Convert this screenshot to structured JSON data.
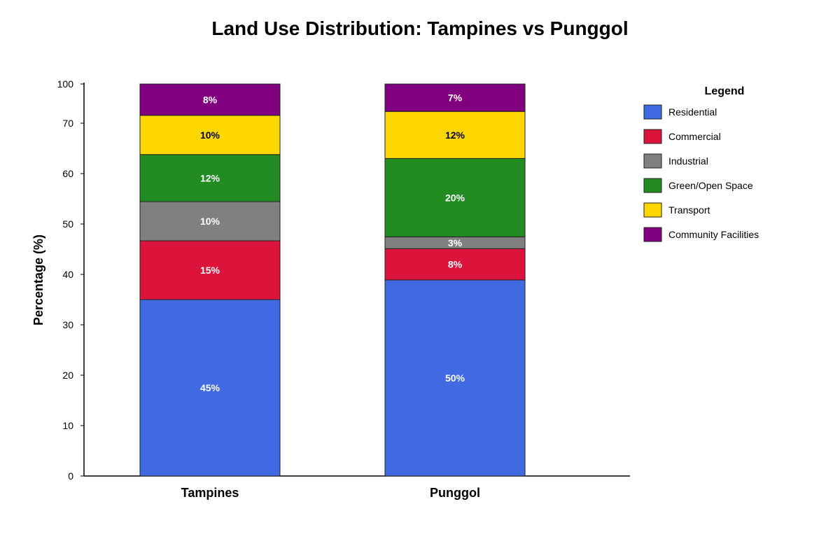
{
  "chart_data": {
    "type": "bar",
    "stacked": true,
    "title": "Land Use Distribution: Tampines vs Punggol",
    "xlabel": "",
    "ylabel": "Percentage (%)",
    "yticks": [
      0,
      10,
      20,
      30,
      40,
      50,
      60,
      70,
      100
    ],
    "categories": [
      "Tampines",
      "Punggol"
    ],
    "series": [
      {
        "name": "Residential",
        "color": "#4169E1",
        "label_color": "#ffffff",
        "values": [
          45,
          50
        ],
        "labels": [
          "45%",
          "50%"
        ]
      },
      {
        "name": "Commercial",
        "color": "#DC143C",
        "label_color": "#ffffff",
        "values": [
          15,
          8
        ],
        "labels": [
          "15%",
          "8%"
        ]
      },
      {
        "name": "Industrial",
        "color": "#808080",
        "label_color": "#ffffff",
        "values": [
          10,
          3
        ],
        "labels": [
          "10%",
          "3%"
        ]
      },
      {
        "name": "Green/Open Space",
        "color": "#228B22",
        "label_color": "#ffffff",
        "values": [
          12,
          20
        ],
        "labels": [
          "12%",
          "20%"
        ]
      },
      {
        "name": "Transport",
        "color": "#FFD700",
        "label_color": "#000000",
        "values": [
          10,
          12
        ],
        "labels": [
          "10%",
          "12%"
        ]
      },
      {
        "name": "Community Facilities",
        "color": "#800080",
        "label_color": "#ffffff",
        "values": [
          8,
          7
        ],
        "labels": [
          "8%",
          "7%"
        ]
      }
    ],
    "legend": {
      "title": "Legend",
      "position": "right"
    },
    "grid": false
  }
}
